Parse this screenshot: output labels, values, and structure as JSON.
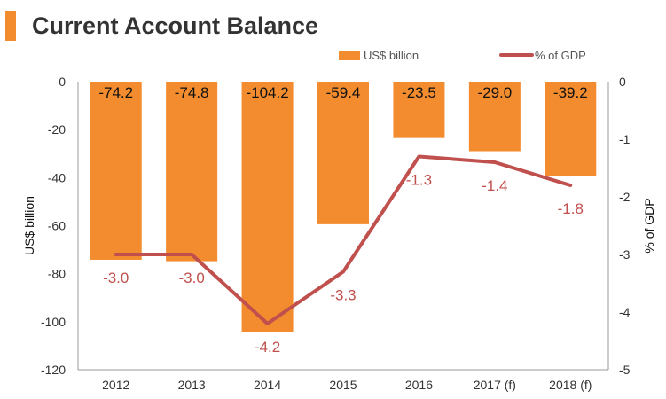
{
  "header": {
    "title": "Current Account Balance"
  },
  "colors": {
    "accent": "#F28C2E",
    "bar": "#F28C2E",
    "line": "#C0504D",
    "text": "#333333"
  },
  "chart_data": {
    "type": "bar",
    "title": "Current Account Balance",
    "categories": [
      "2012",
      "2013",
      "2014",
      "2015",
      "2016",
      "2017 (f)",
      "2018 (f)"
    ],
    "series": [
      {
        "name": "US$ billion",
        "type": "bar",
        "axis": "left",
        "values": [
          -74.2,
          -74.8,
          -104.2,
          -59.4,
          -23.5,
          -29.0,
          -39.2
        ],
        "labels": [
          "-74.2",
          "-74.8",
          "-104.2",
          "-59.4",
          "-23.5",
          "-29.0",
          "-39.2"
        ]
      },
      {
        "name": "% of GDP",
        "type": "line",
        "axis": "right",
        "values": [
          -3.0,
          -3.0,
          -4.2,
          -3.3,
          -1.3,
          -1.4,
          -1.8
        ],
        "labels": [
          "-3.0",
          "-3.0",
          "-4.2",
          "-3.3",
          "-1.3",
          "-1.4",
          "-1.8"
        ]
      }
    ],
    "ylabel": "US$ billion",
    "y2label": "% of GDP",
    "ylim": [
      -120,
      0
    ],
    "y2lim": [
      -5,
      0
    ],
    "yticks": [
      "0",
      "-20",
      "-40",
      "-60",
      "-80",
      "-100",
      "-120"
    ],
    "y2ticks": [
      "0",
      "-1",
      "-2",
      "-3",
      "-4",
      "-5"
    ],
    "legend": "top-right",
    "grid": false
  }
}
